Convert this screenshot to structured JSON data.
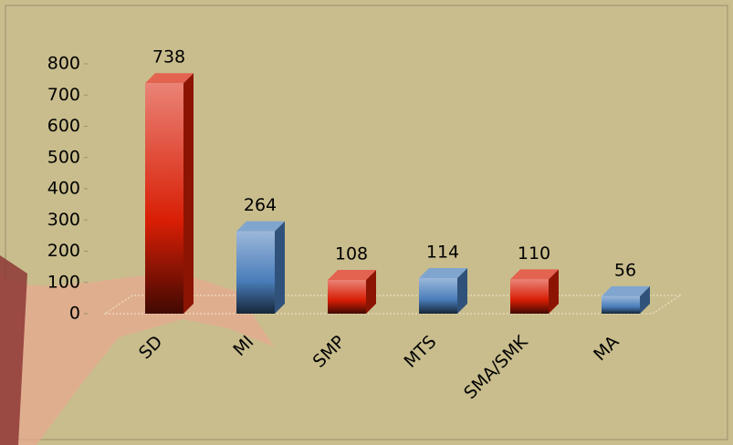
{
  "chart_data": {
    "type": "bar3d",
    "categories": [
      "SD",
      "MI",
      "SMP",
      "MTS",
      "SMA/SMK",
      "MA"
    ],
    "values": [
      738,
      264,
      108,
      114,
      110,
      56
    ],
    "colors": [
      "#d81e05",
      "#4a7ebb",
      "#d81e05",
      "#4a7ebb",
      "#d81e05",
      "#4a7ebb"
    ],
    "ylim": [
      0,
      800
    ],
    "yticks": [
      0,
      100,
      200,
      300,
      400,
      500,
      600,
      700,
      800
    ]
  }
}
